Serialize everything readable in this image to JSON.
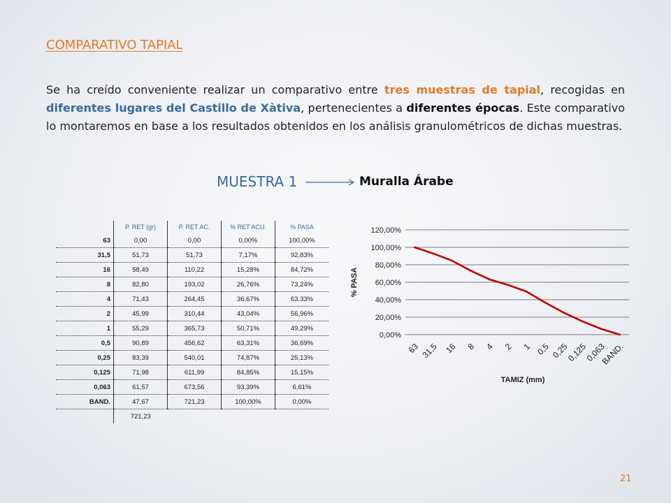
{
  "title": "COMPARATIVO TAPIAL",
  "paragraph": {
    "t1": "Se ha creído conveniente realizar un comparativo entre ",
    "h1": "tres muestras de tapial",
    "t2": ", recogidas en ",
    "h2": "diferentes lugares del Castillo de Xàtiva",
    "t3": ", pertenecientes a ",
    "h3": "diferentes épocas",
    "t4": ". Este comparativo lo montaremos en base a los resultados obtenidos en los análisis granulométricos de dichas muestras."
  },
  "sample": {
    "label": "MUESTRA 1",
    "desc": "Muralla Árabe"
  },
  "table": {
    "headers": [
      "P. RET (gr)",
      "P. RET AC.",
      "% RET ACU.",
      "% PASA"
    ],
    "rows": [
      [
        "63",
        "0,00",
        "0,00",
        "0,00%",
        "100,00%"
      ],
      [
        "31,5",
        "51,73",
        "51,73",
        "7,17%",
        "92,83%"
      ],
      [
        "16",
        "58,49",
        "110,22",
        "15,28%",
        "84,72%"
      ],
      [
        "8",
        "82,80",
        "193,02",
        "26,76%",
        "73,24%"
      ],
      [
        "4",
        "71,43",
        "264,45",
        "36,67%",
        "63,33%"
      ],
      [
        "2",
        "45,99",
        "310,44",
        "43,04%",
        "56,96%"
      ],
      [
        "1",
        "55,29",
        "365,73",
        "50,71%",
        "49,29%"
      ],
      [
        "0,5",
        "90,89",
        "456,62",
        "63,31%",
        "36,69%"
      ],
      [
        "0,25",
        "83,39",
        "540,01",
        "74,87%",
        "25,13%"
      ],
      [
        "0,125",
        "71,98",
        "611,99",
        "84,85%",
        "15,15%"
      ],
      [
        "0,063",
        "61,57",
        "673,56",
        "93,39%",
        "6,61%"
      ],
      [
        "BAND.",
        "47,67",
        "721,23",
        "100,00%",
        "0,00%"
      ]
    ],
    "total": "721,23"
  },
  "chart_data": {
    "type": "line",
    "categories": [
      "63",
      "31,5",
      "16",
      "8",
      "4",
      "2",
      "1",
      "0,5",
      "0,25",
      "0,125",
      "0,063",
      "BAND."
    ],
    "series": [
      {
        "values": [
          100.0,
          92.83,
          84.72,
          73.24,
          63.33,
          56.96,
          49.29,
          36.69,
          25.13,
          15.15,
          6.61,
          0.0
        ],
        "color": "#c00000"
      }
    ],
    "xlabel": "TAMIZ (mm)",
    "ylabel": "% PASA",
    "ylim": [
      0,
      120
    ],
    "yticks": [
      "0,00%",
      "20,00%",
      "40,00%",
      "60,00%",
      "80,00%",
      "100,00%",
      "120,00%"
    ],
    "grid": true
  },
  "page_number": "21",
  "colors": {
    "accent_orange": "#e07b26",
    "accent_blue": "#3b6a9a",
    "series_red": "#c00000"
  }
}
